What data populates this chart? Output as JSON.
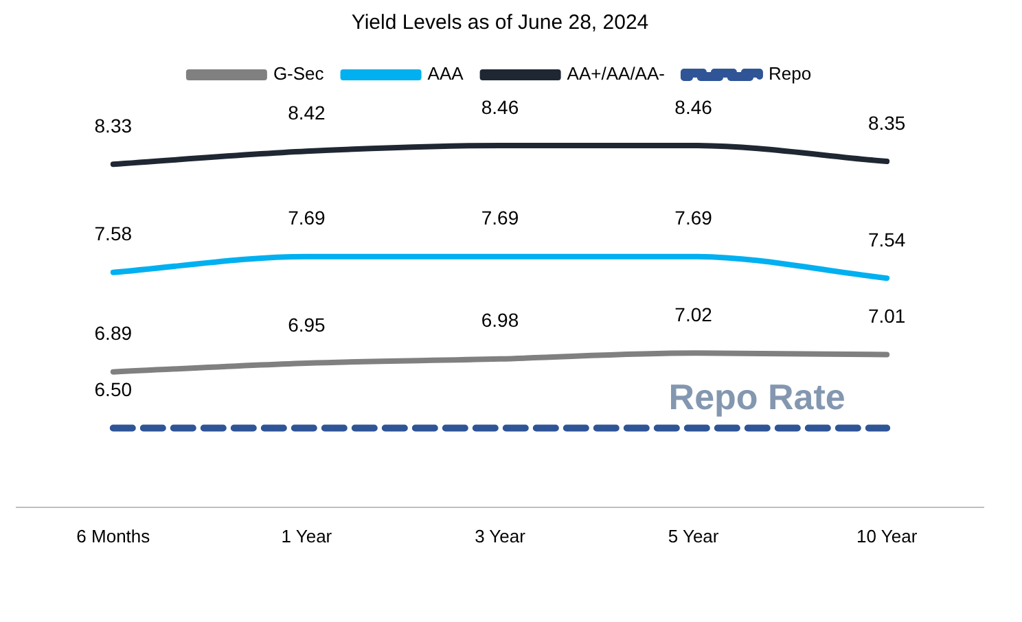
{
  "chart_data": {
    "type": "line",
    "title": "Yield Levels as of June 28, 2024",
    "categories": [
      "6 Months",
      "1 Year",
      "3 Year",
      "5 Year",
      "10 Year"
    ],
    "series": [
      {
        "name": "G-Sec",
        "color": "#808080",
        "values": [
          6.89,
          6.95,
          6.98,
          7.02,
          7.01
        ],
        "value_labels": [
          "6.89",
          "6.95",
          "6.98",
          "7.02",
          "7.01"
        ]
      },
      {
        "name": "AAA",
        "color": "#00b0f0",
        "values": [
          7.58,
          7.69,
          7.69,
          7.69,
          7.54
        ],
        "value_labels": [
          "7.58",
          "7.69",
          "7.69",
          "7.69",
          "7.54"
        ]
      },
      {
        "name": "AA+/AA/AA-",
        "color": "#1f2733",
        "values": [
          8.33,
          8.42,
          8.46,
          8.46,
          8.35
        ],
        "value_labels": [
          "8.33",
          "8.42",
          "8.46",
          "8.46",
          "8.35"
        ]
      },
      {
        "name": "Repo",
        "color": "#2f5597",
        "line_style": "dashed",
        "values": [
          6.5,
          6.5,
          6.5,
          6.5,
          6.5
        ],
        "value_labels": [
          "6.50",
          null,
          null,
          null,
          null
        ]
      }
    ],
    "annotations": [
      {
        "text": "Repo Rate",
        "x": "5 Year",
        "y": 6.5
      }
    ],
    "legend": "top",
    "grid": false,
    "marker": "none"
  }
}
